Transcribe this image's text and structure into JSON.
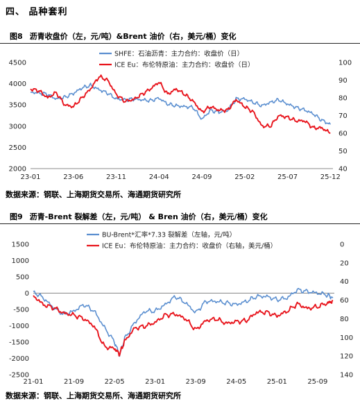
{
  "section_heading": "四、  品种套利",
  "charts": [
    {
      "figure_label": "图8",
      "title": "沥青收盘价（左，元/吨）&Brent 油价（右，美元/桶）变化",
      "source": "数据来源：钢联、上海期货交易所、海通期货研究所"
    },
    {
      "figure_label": "图9",
      "title": "沥青-Brent 裂解差（左，元/吨） & Bren 油价（右，美元/桶）变化",
      "source": "数据来源：钢联、上海期货交易所、海通期货研究所"
    }
  ],
  "chart_data": [
    {
      "type": "line",
      "x_ticks": [
        "23-01",
        "23-06",
        "23-11",
        "24-04",
        "24-09",
        "25-02",
        "25-07",
        "25-12"
      ],
      "y_left": {
        "range": [
          2000,
          4500
        ],
        "ticks": [
          2000,
          2500,
          3000,
          3500,
          4000,
          4500
        ]
      },
      "y_right": {
        "range": [
          40,
          100
        ],
        "ticks": [
          40,
          50,
          60,
          70,
          80,
          90,
          100
        ]
      },
      "legend": "top-center",
      "grid": false,
      "series": [
        {
          "name": "SHFE：石油沥青：主力合约：收盘价（日）",
          "axis": "left",
          "color": "#5b8fd0",
          "points": [
            [
              "23-01",
              3800
            ],
            [
              "23-02",
              3780
            ],
            [
              "23-03",
              3750
            ],
            [
              "23-04",
              3640
            ],
            [
              "23-05",
              3680
            ],
            [
              "23-06",
              3770
            ],
            [
              "23-07",
              3900
            ],
            [
              "23-08",
              3960
            ],
            [
              "23-09",
              3860
            ],
            [
              "23-10",
              3780
            ],
            [
              "23-11",
              3640
            ],
            [
              "23-12",
              3620
            ],
            [
              "24-01",
              3640
            ],
            [
              "24-02",
              3620
            ],
            [
              "24-03",
              3600
            ],
            [
              "24-04",
              3660
            ],
            [
              "24-05",
              3520
            ],
            [
              "24-06",
              3480
            ],
            [
              "24-07",
              3460
            ],
            [
              "24-08",
              3440
            ],
            [
              "24-09",
              3160
            ],
            [
              "24-10",
              3370
            ],
            [
              "24-11",
              3330
            ],
            [
              "24-12",
              3370
            ],
            [
              "25-01",
              3640
            ],
            [
              "25-02",
              3640
            ],
            [
              "25-03",
              3560
            ],
            [
              "25-04",
              3480
            ],
            [
              "25-05",
              3560
            ],
            [
              "25-06",
              3620
            ],
            [
              "25-07",
              3520
            ],
            [
              "25-08",
              3440
            ],
            [
              "25-09",
              3380
            ],
            [
              "25-10",
              3290
            ],
            [
              "25-11",
              3140
            ],
            [
              "25-12",
              3040
            ]
          ]
        },
        {
          "name": "ICE Eu：布伦特原油：主力合约：收盘价（日）",
          "axis": "right",
          "color": "#e8141c",
          "points": [
            [
              "23-01",
              85
            ],
            [
              "23-02",
              84
            ],
            [
              "23-03",
              80
            ],
            [
              "23-04",
              83
            ],
            [
              "23-05",
              76
            ],
            [
              "23-06",
              75
            ],
            [
              "23-07",
              80
            ],
            [
              "23-08",
              85
            ],
            [
              "23-09",
              92
            ],
            [
              "23-10",
              90
            ],
            [
              "23-11",
              82
            ],
            [
              "23-12",
              78
            ],
            [
              "24-01",
              79
            ],
            [
              "24-02",
              82
            ],
            [
              "24-03",
              85
            ],
            [
              "24-04",
              89
            ],
            [
              "24-05",
              82
            ],
            [
              "24-06",
              85
            ],
            [
              "24-07",
              82
            ],
            [
              "24-08",
              78
            ],
            [
              "24-09",
              72
            ],
            [
              "24-10",
              75
            ],
            [
              "24-11",
              73
            ],
            [
              "24-12",
              73
            ],
            [
              "25-01",
              79
            ],
            [
              "25-02",
              75
            ],
            [
              "25-03",
              72
            ],
            [
              "25-04",
              64
            ],
            [
              "25-05",
              64
            ],
            [
              "25-06",
              70
            ],
            [
              "25-07",
              69
            ],
            [
              "25-08",
              67
            ],
            [
              "25-09",
              67
            ],
            [
              "25-10",
              63
            ],
            [
              "25-11",
              63
            ],
            [
              "25-12",
              60
            ]
          ]
        }
      ]
    },
    {
      "type": "line",
      "x_ticks": [
        "21-01",
        "21-09",
        "22-05",
        "23-01",
        "23-09",
        "24-05",
        "25-01",
        "25-09"
      ],
      "y_left": {
        "range": [
          -2500,
          1500
        ],
        "ticks": [
          -2500,
          -2000,
          -1500,
          -1000,
          -500,
          0,
          500,
          1000,
          1500
        ]
      },
      "y_right": {
        "range": [
          0,
          140
        ],
        "ticks": [
          0,
          20,
          40,
          60,
          80,
          100,
          120,
          140
        ],
        "inverted": true
      },
      "legend": "top-center",
      "grid": false,
      "series": [
        {
          "name": "BU-Brent*汇率*7.33 裂解差（左轴，元/吨）",
          "axis": "left",
          "color": "#5b8fd0",
          "points": [
            [
              "21-01",
              50
            ],
            [
              "21-03",
              -150
            ],
            [
              "21-05",
              -450
            ],
            [
              "21-07",
              -650
            ],
            [
              "21-09",
              -550
            ],
            [
              "21-11",
              -350
            ],
            [
              "22-01",
              -550
            ],
            [
              "22-03",
              -1050
            ],
            [
              "22-05",
              -1500
            ],
            [
              "22-06",
              -1900
            ],
            [
              "22-07",
              -1400
            ],
            [
              "22-09",
              -900
            ],
            [
              "22-11",
              -550
            ],
            [
              "23-01",
              -550
            ],
            [
              "23-03",
              -350
            ],
            [
              "23-05",
              -100
            ],
            [
              "23-07",
              -300
            ],
            [
              "23-09",
              -600
            ],
            [
              "23-11",
              -250
            ],
            [
              "24-01",
              -250
            ],
            [
              "24-03",
              -300
            ],
            [
              "24-05",
              -350
            ],
            [
              "24-07",
              -250
            ],
            [
              "24-09",
              -100
            ],
            [
              "24-11",
              -100
            ],
            [
              "25-01",
              -200
            ],
            [
              "25-03",
              -150
            ],
            [
              "25-05",
              100
            ],
            [
              "25-07",
              50
            ],
            [
              "25-09",
              0
            ],
            [
              "25-11",
              -50
            ],
            [
              "25-12",
              -150
            ]
          ]
        },
        {
          "name": "ICE Eu：布伦特原油：主力合约：收盘价（右轴，美元/桶）",
          "axis": "right",
          "color": "#e8141c",
          "points": [
            [
              "21-01",
              55
            ],
            [
              "21-03",
              65
            ],
            [
              "21-05",
              68
            ],
            [
              "21-07",
              74
            ],
            [
              "21-09",
              76
            ],
            [
              "21-11",
              80
            ],
            [
              "22-01",
              88
            ],
            [
              "22-03",
              110
            ],
            [
              "22-05",
              112
            ],
            [
              "22-06",
              118
            ],
            [
              "22-07",
              104
            ],
            [
              "22-09",
              90
            ],
            [
              "22-11",
              88
            ],
            [
              "23-01",
              84
            ],
            [
              "23-03",
              76
            ],
            [
              "23-05",
              75
            ],
            [
              "23-07",
              80
            ],
            [
              "23-09",
              92
            ],
            [
              "23-11",
              82
            ],
            [
              "24-01",
              80
            ],
            [
              "24-03",
              85
            ],
            [
              "24-05",
              83
            ],
            [
              "24-07",
              82
            ],
            [
              "24-09",
              73
            ],
            [
              "24-11",
              73
            ],
            [
              "25-01",
              77
            ],
            [
              "25-03",
              72
            ],
            [
              "25-05",
              64
            ],
            [
              "25-07",
              69
            ],
            [
              "25-09",
              67
            ],
            [
              "25-11",
              63
            ],
            [
              "25-12",
              61
            ]
          ]
        }
      ]
    }
  ]
}
